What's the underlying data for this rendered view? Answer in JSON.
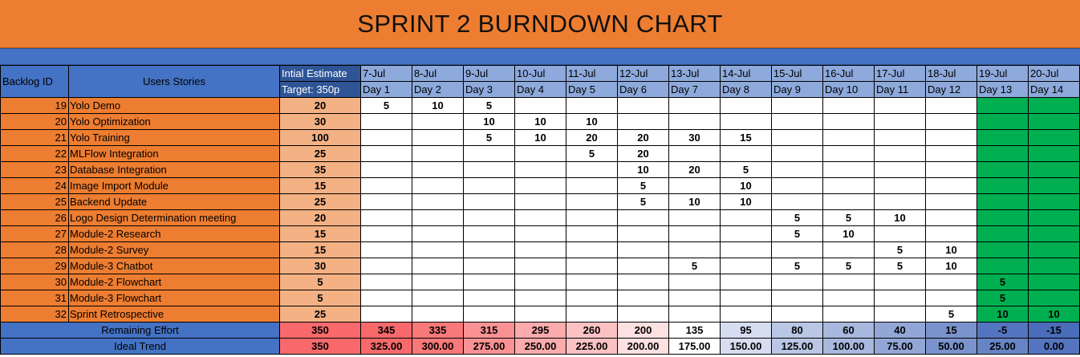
{
  "title": "SPRINT 2 BURNDOWN CHART",
  "headers": {
    "backlog_id": "Backlog ID",
    "user_stories": "Users Stories",
    "initial_estimate": "Intial Estimate",
    "target": "Target: 350p"
  },
  "dates": [
    "7-Jul",
    "8-Jul",
    "9-Jul",
    "10-Jul",
    "11-Jul",
    "12-Jul",
    "13-Jul",
    "14-Jul",
    "15-Jul",
    "16-Jul",
    "17-Jul",
    "18-Jul",
    "19-Jul",
    "20-Jul"
  ],
  "days": [
    "Day 1",
    "Day 2",
    "Day 3",
    "Day 4",
    "Day 5",
    "Day 6",
    "Day 7",
    "Day 8",
    "Day 9",
    "Day 10",
    "Day 11",
    "Day 12",
    "Day 13",
    "Day 14"
  ],
  "rows": [
    {
      "id": "19",
      "story": "Yolo Demo",
      "estimate": "20",
      "values": [
        "5",
        "10",
        "5",
        "",
        "",
        "",
        "",
        "",
        "",
        "",
        "",
        "",
        "",
        ""
      ]
    },
    {
      "id": "20",
      "story": "Yolo Optimization",
      "estimate": "30",
      "values": [
        "",
        "",
        "10",
        "10",
        "10",
        "",
        "",
        "",
        "",
        "",
        "",
        "",
        "",
        ""
      ]
    },
    {
      "id": "21",
      "story": "Yolo Training",
      "estimate": "100",
      "values": [
        "",
        "",
        "5",
        "10",
        "20",
        "20",
        "30",
        "15",
        "",
        "",
        "",
        "",
        "",
        ""
      ]
    },
    {
      "id": "22",
      "story": "MLFlow Integration",
      "estimate": "25",
      "values": [
        "",
        "",
        "",
        "",
        "5",
        "20",
        "",
        "",
        "",
        "",
        "",
        "",
        "",
        ""
      ]
    },
    {
      "id": "23",
      "story": "Database Integration",
      "estimate": "35",
      "values": [
        "",
        "",
        "",
        "",
        "",
        "10",
        "20",
        "5",
        "",
        "",
        "",
        "",
        "",
        ""
      ]
    },
    {
      "id": "24",
      "story": "Image Import Module",
      "estimate": "15",
      "values": [
        "",
        "",
        "",
        "",
        "",
        "5",
        "",
        "10",
        "",
        "",
        "",
        "",
        "",
        ""
      ]
    },
    {
      "id": "25",
      "story": "Backend Update",
      "estimate": "25",
      "values": [
        "",
        "",
        "",
        "",
        "",
        "5",
        "10",
        "10",
        "",
        "",
        "",
        "",
        "",
        ""
      ]
    },
    {
      "id": "26",
      "story": "Logo Design Determination meeting",
      "estimate": "20",
      "values": [
        "",
        "",
        "",
        "",
        "",
        "",
        "",
        "",
        "5",
        "5",
        "10",
        "",
        "",
        ""
      ]
    },
    {
      "id": "27",
      "story": "Module-2 Research",
      "estimate": "15",
      "values": [
        "",
        "",
        "",
        "",
        "",
        "",
        "",
        "",
        "5",
        "10",
        "",
        "",
        "",
        ""
      ]
    },
    {
      "id": "28",
      "story": "Module-2 Survey",
      "estimate": "15",
      "values": [
        "",
        "",
        "",
        "",
        "",
        "",
        "",
        "",
        "",
        "",
        "5",
        "10",
        "",
        ""
      ]
    },
    {
      "id": "29",
      "story": "Module-3 Chatbot",
      "estimate": "30",
      "values": [
        "",
        "",
        "",
        "",
        "",
        "",
        "5",
        "",
        "5",
        "5",
        "5",
        "10",
        "",
        ""
      ]
    },
    {
      "id": "30",
      "story": "Module-2 Flowchart",
      "estimate": "5",
      "values": [
        "",
        "",
        "",
        "",
        "",
        "",
        "",
        "",
        "",
        "",
        "",
        "",
        "5",
        ""
      ]
    },
    {
      "id": "31",
      "story": "Module-3 Flowchart",
      "estimate": "5",
      "values": [
        "",
        "",
        "",
        "",
        "",
        "",
        "",
        "",
        "",
        "",
        "",
        "",
        "5",
        ""
      ]
    },
    {
      "id": "32",
      "story": "Sprint Retrospective",
      "estimate": "25",
      "values": [
        "",
        "",
        "",
        "",
        "",
        "",
        "",
        "",
        "",
        "",
        "",
        "5",
        "10",
        "10"
      ]
    }
  ],
  "remaining": {
    "label": "Remaining Effort",
    "total": "350",
    "values": [
      "345",
      "335",
      "315",
      "295",
      "260",
      "200",
      "135",
      "95",
      "80",
      "60",
      "40",
      "15",
      "-5",
      "-15"
    ]
  },
  "ideal": {
    "label": "Ideal Trend",
    "total": "350",
    "values": [
      "325.00",
      "300.00",
      "275.00",
      "250.00",
      "225.00",
      "200.00",
      "175.00",
      "150.00",
      "125.00",
      "100.00",
      "75.00",
      "50.00",
      "25.00",
      "0.00"
    ]
  },
  "colors": {
    "title_bg": "#ed7d31",
    "strip_bg": "#4472c4",
    "header_dark": "#2f5597",
    "header_light": "#8ea9db",
    "row_bg": "#ed7d31",
    "estimate_bg": "#f4b183",
    "done_green": "#00b050",
    "remaining_colors": [
      "#f8696b",
      "#f9787a",
      "#fa9294",
      "#fbabac",
      "#fcc2c3",
      "#fde0e0",
      "#ffffff",
      "#d6ddf0",
      "#b9c6e4",
      "#a8b8df",
      "#93a7d6",
      "#7a93cc",
      "#5574bf",
      "#4a6cba"
    ],
    "ideal_colors": [
      "#f8696b",
      "#f9787a",
      "#fa9294",
      "#fbabac",
      "#fcc2c3",
      "#fde0e0",
      "#ffffff",
      "#d6ddf0",
      "#b9c6e4",
      "#a8b8df",
      "#93a7d6",
      "#7a93cc",
      "#6785c4",
      "#5574bf"
    ]
  }
}
